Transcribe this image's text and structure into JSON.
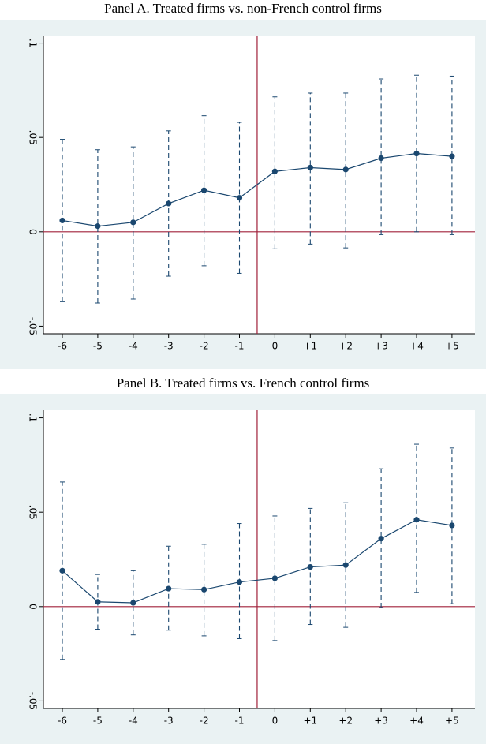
{
  "chart_data": [
    {
      "type": "errorbar-line",
      "title": "Panel A. Treated firms vs. non-French control firms",
      "categories": [
        "-6",
        "-5",
        "-4",
        "-3",
        "-2",
        "-1",
        "0",
        "+1",
        "+2",
        "+3",
        "+4",
        "+5"
      ],
      "values": [
        0.006,
        0.003,
        0.005,
        0.015,
        0.022,
        0.018,
        0.032,
        0.034,
        0.033,
        0.039,
        0.0415,
        0.04
      ],
      "lower": [
        -0.037,
        -0.0377,
        -0.0356,
        -0.0235,
        -0.018,
        -0.022,
        -0.009,
        -0.0065,
        -0.0085,
        -0.0015,
        0,
        -0.0015
      ],
      "upper": [
        0.049,
        0.0435,
        0.045,
        0.0535,
        0.0615,
        0.058,
        0.0715,
        0.0735,
        0.0735,
        0.081,
        0.083,
        0.0825
      ],
      "color": "#1a476f",
      "ref_line_color": "#a0203a",
      "ylim": [
        -0.054,
        0.104
      ],
      "yticks": [
        {
          "value": -0.05,
          "label": "-.05"
        },
        0,
        {
          "value": 0.05,
          "label": ".05"
        },
        {
          "value": 0.1,
          "label": ".1"
        }
      ]
    },
    {
      "type": "errorbar-line",
      "title": "Panel B. Treated firms vs. French control firms",
      "categories": [
        "-6",
        "-5",
        "-4",
        "-3",
        "-2",
        "-1",
        "0",
        "+1",
        "+2",
        "+3",
        "+4",
        "+5"
      ],
      "values": [
        0.019,
        0.0025,
        0.002,
        0.0095,
        0.009,
        0.013,
        0.015,
        0.021,
        0.022,
        0.036,
        0.046,
        0.043
      ],
      "lower": [
        -0.028,
        -0.012,
        -0.015,
        -0.0125,
        -0.0155,
        -0.017,
        -0.018,
        -0.0095,
        -0.011,
        -0.0005,
        0.0075,
        0.0015
      ],
      "upper": [
        0.066,
        0.017,
        0.019,
        0.032,
        0.033,
        0.044,
        0.048,
        0.052,
        0.055,
        0.073,
        0.086,
        0.084
      ],
      "color": "#1a476f",
      "ref_line_color": "#a0203a",
      "ylim": [
        -0.054,
        0.104
      ],
      "yticks": [
        {
          "value": -0.05,
          "label": "-.05"
        },
        0,
        {
          "value": 0.05,
          "label": ".05"
        },
        {
          "value": 0.1,
          "label": ".1"
        }
      ]
    }
  ]
}
